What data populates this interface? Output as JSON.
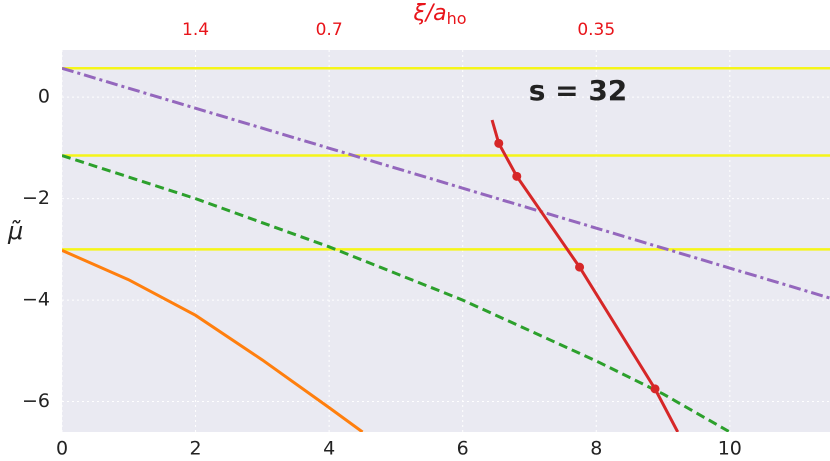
{
  "chart_data": {
    "type": "line",
    "annotation": "s = 32",
    "y_label": "μ̃",
    "top_axis_label": "ξ/a",
    "top_axis_label_sub": "ho",
    "xlim": [
      0,
      11.5
    ],
    "ylim": [
      -6.6,
      0.93
    ],
    "xticks": [
      0,
      2,
      4,
      6,
      8,
      10
    ],
    "yticks": [
      0,
      {
        "value": -2,
        "label": "−2"
      },
      {
        "value": -4,
        "label": "−4"
      },
      {
        "value": -6,
        "label": "−6"
      }
    ],
    "top_ticks": [
      {
        "value": 2,
        "label": "1.4"
      },
      {
        "value": 4,
        "label": "0.7"
      },
      {
        "value": 8,
        "label": "0.35"
      }
    ],
    "top_tick_color": "#e8141a",
    "background": "#eaeaf2",
    "grid": true,
    "hlines": {
      "color": "#f5f519",
      "values": [
        0.57,
        -1.15,
        -3.0
      ]
    },
    "series": [
      {
        "color": "#9467bd",
        "style": "dashdot",
        "x": [
          0,
          11.5
        ],
        "values": [
          0.57,
          -3.96
        ]
      },
      {
        "color": "#2ca02c",
        "style": "dashed",
        "x": [
          0,
          2,
          4,
          6,
          8,
          9,
          10
        ],
        "values": [
          -1.15,
          -2.0,
          -2.95,
          -4.0,
          -5.2,
          -5.85,
          -6.6
        ]
      },
      {
        "color": "#ff7f0e",
        "style": "solid",
        "x": [
          0,
          1,
          2,
          3,
          4,
          4.5
        ],
        "values": [
          -3.02,
          -3.6,
          -4.3,
          -5.18,
          -6.12,
          -6.6
        ]
      },
      {
        "color": "#d62728",
        "style": "solid",
        "x": [
          6.44,
          6.54,
          6.81,
          7.75,
          8.88,
          9.22
        ],
        "values": [
          -0.45,
          -0.91,
          -1.56,
          -3.35,
          -5.75,
          -6.6
        ]
      },
      {
        "color": "#d62728",
        "style": "markers",
        "x": [
          6.54,
          6.81,
          7.75,
          8.88
        ],
        "values": [
          -0.91,
          -1.56,
          -3.35,
          -5.75
        ]
      }
    ]
  }
}
